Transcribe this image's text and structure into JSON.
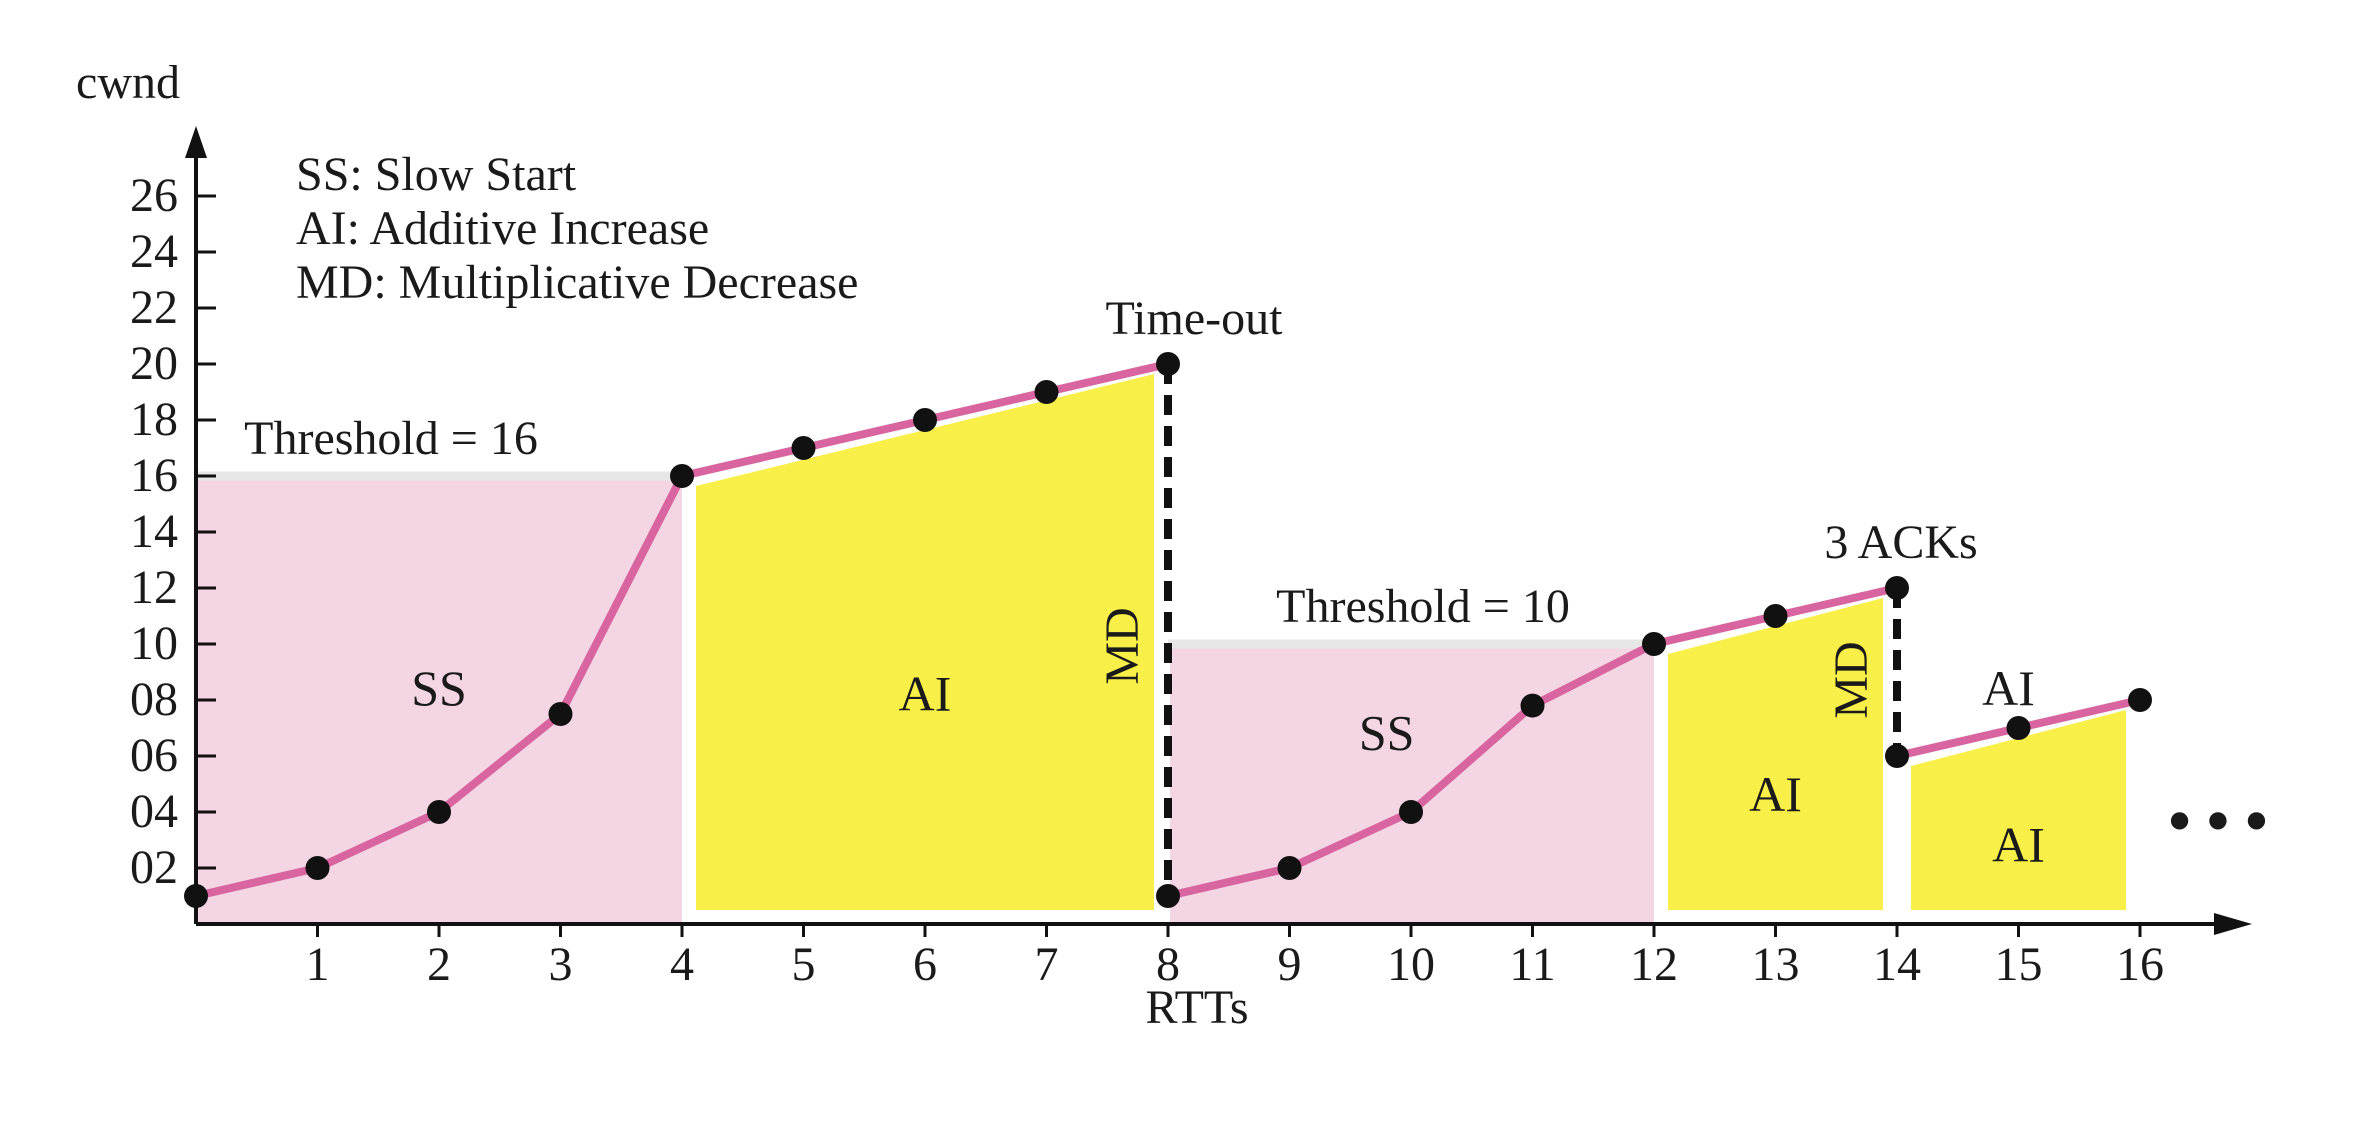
{
  "chart_data": {
    "type": "line",
    "ylabel": "cwnd",
    "xlabel": "RTTs",
    "xlim": [
      0,
      17
    ],
    "ylim": [
      0,
      27
    ],
    "x_ticks": [
      "1",
      "2",
      "3",
      "4",
      "5",
      "6",
      "7",
      "8",
      "9",
      "10",
      "11",
      "12",
      "13",
      "14",
      "15",
      "16"
    ],
    "y_ticks": [
      "02",
      "04",
      "06",
      "08",
      "10",
      "12",
      "14",
      "16",
      "18",
      "20",
      "22",
      "24",
      "26"
    ],
    "legend": [
      "SS: Slow Start",
      "AI: Additive Increase",
      "MD: Multiplicative Decrease"
    ],
    "series": [
      {
        "points": [
          [
            0,
            1
          ],
          [
            1,
            2
          ],
          [
            2,
            4
          ],
          [
            3,
            7.5
          ],
          [
            4,
            16
          ],
          [
            5,
            17
          ],
          [
            6,
            18
          ],
          [
            7,
            19
          ],
          [
            8,
            20
          ],
          [
            8,
            1
          ],
          [
            9,
            2
          ],
          [
            10,
            4
          ],
          [
            11,
            7.8
          ],
          [
            12,
            10
          ],
          [
            13,
            11
          ],
          [
            14,
            12
          ],
          [
            14,
            6
          ],
          [
            15,
            7
          ],
          [
            16,
            8
          ]
        ]
      }
    ],
    "thresholds": [
      {
        "label": "Threshold = 16",
        "value": 16,
        "x_range": [
          0,
          4
        ]
      },
      {
        "label": "Threshold = 10",
        "value": 10,
        "x_range": [
          8,
          12
        ]
      }
    ],
    "regions": [
      {
        "label": "SS",
        "kind": "ss",
        "x_range": [
          0,
          4
        ],
        "label_at": [
          2,
          8.4
        ]
      },
      {
        "label": "AI",
        "kind": "ai",
        "x_range": [
          4,
          8
        ],
        "label_at": [
          6,
          8.2
        ]
      },
      {
        "label": "SS",
        "kind": "ss",
        "x_range": [
          8,
          12
        ],
        "label_at": [
          9.8,
          6.8
        ]
      },
      {
        "label": "AI",
        "kind": "ai",
        "x_range": [
          12,
          14
        ],
        "label_at": [
          13,
          4.6
        ]
      },
      {
        "label": "AI",
        "kind": "ai",
        "x_range": [
          14,
          16
        ],
        "label_at": [
          15,
          2.8
        ]
      }
    ],
    "events": [
      {
        "label": "Time-out",
        "x": 8,
        "from": 20,
        "to": 1,
        "md_label": "MD"
      },
      {
        "label": "3 ACKs",
        "x": 14,
        "from": 12,
        "to": 6,
        "md_label": "MD"
      }
    ],
    "extra_labels": [
      {
        "text": "AI",
        "at": [
          15,
          8.4
        ]
      }
    ],
    "continuation": "• • •",
    "colors": {
      "line": "#d865a0",
      "ss_fill": "#f4d5e4",
      "ai_fill": "#f8ef48",
      "threshold": "#e6e6e6",
      "marker": "#111111",
      "axis": "#111111"
    }
  }
}
